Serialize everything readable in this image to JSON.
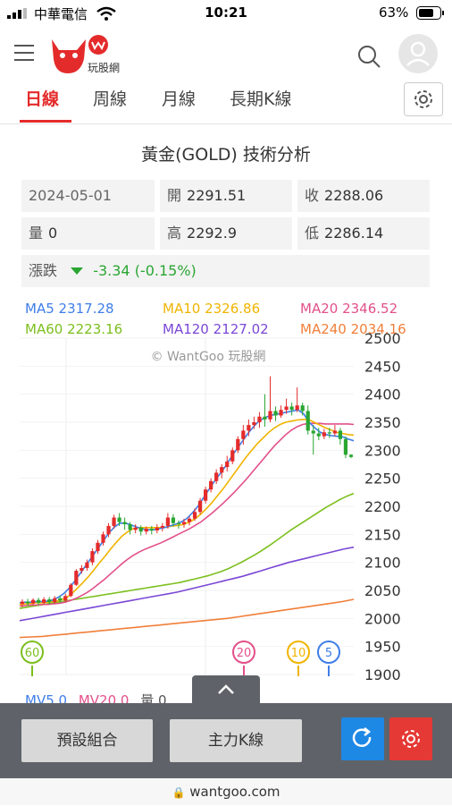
{
  "status_bar": {
    "carrier": "中華電信",
    "time": "10:21",
    "battery": "63%"
  },
  "header": {
    "logo_text": "玩股網"
  },
  "tabs": [
    {
      "label": "日線",
      "active": true
    },
    {
      "label": "周線",
      "active": false
    },
    {
      "label": "月線",
      "active": false
    },
    {
      "label": "長期K線",
      "active": false
    }
  ],
  "title": "黃金(GOLD) 技術分析",
  "quote": {
    "date": "2024-05-01",
    "open_label": "開",
    "open": "2291.51",
    "close_label": "收",
    "close": "2288.06",
    "volume_label": "量",
    "volume": "0",
    "high_label": "高",
    "high": "2292.9",
    "low_label": "低",
    "low": "2286.14",
    "change_label": "漲跌",
    "change": "-3.34 (-0.15%)"
  },
  "ma_legend": [
    {
      "label": "MA5",
      "value": "2317.28",
      "color": "#3f7ee8"
    },
    {
      "label": "MA10",
      "value": "2326.86",
      "color": "#f0b400"
    },
    {
      "label": "MA20",
      "value": "2346.52",
      "color": "#e2508a"
    },
    {
      "label": "MA60",
      "value": "2223.16",
      "color": "#7cbf1e"
    },
    {
      "label": "MA120",
      "value": "2127.02",
      "color": "#7a47d6"
    },
    {
      "label": "MA240",
      "value": "2034.16",
      "color": "#f07f3a"
    }
  ],
  "watermark": "© WantGoo 玩股網",
  "vol_legend": {
    "mv5": "MV5 0",
    "mv20": "MV20 0",
    "vol": "量 0"
  },
  "ma_badges": [
    "60",
    "20",
    "10",
    "5"
  ],
  "buttons": {
    "preset": "預設組合",
    "main_k": "主力K線"
  },
  "url": "wantgoo.com",
  "chart_data": {
    "type": "candlestick",
    "y_ticks": [
      2500,
      2450,
      2400,
      2350,
      2300,
      2250,
      2200,
      2150,
      2100,
      2050,
      2000,
      1950,
      1900
    ],
    "ylim": [
      1900,
      2500
    ],
    "candles": [
      [
        2026,
        2030,
        2020,
        2034
      ],
      [
        2030,
        2027,
        2022,
        2035
      ],
      [
        2027,
        2033,
        2024,
        2036
      ],
      [
        2033,
        2028,
        2024,
        2037
      ],
      [
        2028,
        2034,
        2025,
        2038
      ],
      [
        2034,
        2029,
        2025,
        2038
      ],
      [
        2029,
        2036,
        2026,
        2040
      ],
      [
        2036,
        2032,
        2028,
        2040
      ],
      [
        2032,
        2040,
        2029,
        2044
      ],
      [
        2040,
        2060,
        2038,
        2063
      ],
      [
        2060,
        2085,
        2058,
        2088
      ],
      [
        2085,
        2090,
        2080,
        2095
      ],
      [
        2090,
        2100,
        2085,
        2105
      ],
      [
        2100,
        2120,
        2095,
        2125
      ],
      [
        2120,
        2135,
        2115,
        2140
      ],
      [
        2135,
        2150,
        2130,
        2155
      ],
      [
        2150,
        2165,
        2145,
        2170
      ],
      [
        2165,
        2180,
        2160,
        2185
      ],
      [
        2180,
        2172,
        2165,
        2188
      ],
      [
        2172,
        2168,
        2158,
        2180
      ],
      [
        2168,
        2158,
        2150,
        2172
      ],
      [
        2158,
        2162,
        2152,
        2168
      ],
      [
        2162,
        2155,
        2148,
        2166
      ],
      [
        2155,
        2160,
        2150,
        2164
      ],
      [
        2160,
        2157,
        2150,
        2165
      ],
      [
        2157,
        2162,
        2152,
        2168
      ],
      [
        2162,
        2165,
        2155,
        2170
      ],
      [
        2165,
        2180,
        2160,
        2188
      ],
      [
        2180,
        2170,
        2164,
        2186
      ],
      [
        2170,
        2168,
        2160,
        2175
      ],
      [
        2168,
        2172,
        2162,
        2178
      ],
      [
        2172,
        2178,
        2166,
        2182
      ],
      [
        2178,
        2190,
        2174,
        2196
      ],
      [
        2190,
        2210,
        2186,
        2215
      ],
      [
        2210,
        2230,
        2205,
        2235
      ],
      [
        2230,
        2245,
        2225,
        2250
      ],
      [
        2245,
        2260,
        2240,
        2266
      ],
      [
        2260,
        2270,
        2250,
        2275
      ],
      [
        2270,
        2280,
        2262,
        2290
      ],
      [
        2280,
        2300,
        2275,
        2305
      ],
      [
        2300,
        2320,
        2295,
        2325
      ],
      [
        2320,
        2335,
        2310,
        2345
      ],
      [
        2335,
        2345,
        2325,
        2355
      ],
      [
        2345,
        2350,
        2338,
        2360
      ],
      [
        2350,
        2360,
        2340,
        2368
      ],
      [
        2360,
        2355,
        2342,
        2400
      ],
      [
        2355,
        2370,
        2350,
        2432
      ],
      [
        2370,
        2362,
        2352,
        2378
      ],
      [
        2362,
        2372,
        2358,
        2380
      ],
      [
        2372,
        2378,
        2365,
        2392
      ],
      [
        2378,
        2372,
        2362,
        2385
      ],
      [
        2372,
        2380,
        2368,
        2412
      ],
      [
        2380,
        2370,
        2362,
        2385
      ],
      [
        2370,
        2335,
        2328,
        2380
      ],
      [
        2335,
        2330,
        2292,
        2345
      ],
      [
        2330,
        2325,
        2318,
        2340
      ],
      [
        2325,
        2332,
        2320,
        2338
      ],
      [
        2332,
        2330,
        2322,
        2340
      ],
      [
        2330,
        2335,
        2325,
        2345
      ],
      [
        2335,
        2320,
        2310,
        2340
      ],
      [
        2320,
        2292,
        2286,
        2325
      ],
      [
        2292,
        2288,
        2286,
        2293
      ]
    ],
    "ma5": [
      2028,
      2029,
      2029,
      2030,
      2030,
      2031,
      2033,
      2038,
      2045,
      2055,
      2068,
      2082,
      2096,
      2110,
      2124,
      2138,
      2152,
      2163,
      2170,
      2170,
      2167,
      2163,
      2160,
      2158,
      2158,
      2160,
      2162,
      2165,
      2168,
      2172,
      2178,
      2188,
      2200,
      2215,
      2230,
      2245,
      2258,
      2272,
      2288,
      2302,
      2316,
      2330,
      2342,
      2352,
      2358,
      2362,
      2364,
      2366,
      2368,
      2370,
      2372,
      2365,
      2350,
      2340,
      2332,
      2328,
      2326,
      2325,
      2324,
      2320,
      2317
    ],
    "ma10": [
      2025,
      2026,
      2027,
      2028,
      2028,
      2029,
      2030,
      2032,
      2036,
      2042,
      2052,
      2062,
      2073,
      2085,
      2098,
      2110,
      2123,
      2135,
      2146,
      2154,
      2160,
      2162,
      2162,
      2162,
      2162,
      2162,
      2163,
      2165,
      2166,
      2168,
      2172,
      2178,
      2186,
      2196,
      2207,
      2220,
      2232,
      2246,
      2260,
      2274,
      2288,
      2300,
      2312,
      2322,
      2332,
      2340,
      2346,
      2350,
      2352,
      2354,
      2355,
      2355,
      2350,
      2345,
      2340,
      2336,
      2332,
      2330,
      2328,
      2327
    ],
    "ma20": [
      2022,
      2023,
      2024,
      2024,
      2025,
      2025,
      2026,
      2027,
      2029,
      2032,
      2036,
      2041,
      2047,
      2054,
      2062,
      2070,
      2079,
      2088,
      2097,
      2105,
      2112,
      2118,
      2123,
      2127,
      2131,
      2135,
      2140,
      2145,
      2150,
      2155,
      2160,
      2166,
      2172,
      2180,
      2188,
      2197,
      2206,
      2216,
      2226,
      2237,
      2248,
      2260,
      2272,
      2284,
      2296,
      2308,
      2318,
      2328,
      2336,
      2342,
      2346,
      2348,
      2348,
      2348,
      2347,
      2347,
      2347,
      2347,
      2347,
      2346
    ],
    "ma60": [
      2018,
      2020,
      2022,
      2024,
      2026,
      2028,
      2030,
      2032,
      2034,
      2036,
      2038,
      2040,
      2042,
      2044,
      2046,
      2048,
      2050,
      2052,
      2054,
      2056,
      2058,
      2060,
      2062,
      2064,
      2067,
      2070,
      2073,
      2076,
      2080,
      2084,
      2089,
      2095,
      2101,
      2108,
      2115,
      2123,
      2131,
      2140,
      2149,
      2158,
      2166,
      2174,
      2182,
      2190,
      2198,
      2205,
      2212,
      2218,
      2223
    ],
    "ma120": [
      1996,
      1999,
      2002,
      2005,
      2008,
      2011,
      2014,
      2017,
      2020,
      2023,
      2026,
      2029,
      2032,
      2035,
      2038,
      2041,
      2044,
      2047,
      2051,
      2055,
      2059,
      2063,
      2067,
      2071,
      2075,
      2080,
      2085,
      2090,
      2095,
      2100,
      2104,
      2108,
      2112,
      2116,
      2120,
      2124,
      2127
    ],
    "ma240": [
      1966,
      1967,
      1968,
      1970,
      1972,
      1974,
      1976,
      1978,
      1980,
      1982,
      1984,
      1986,
      1988,
      1990,
      1992,
      1994,
      1996,
      1998,
      2000,
      2003,
      2006,
      2009,
      2012,
      2015,
      2018,
      2021,
      2024,
      2027,
      2030,
      2034
    ]
  }
}
